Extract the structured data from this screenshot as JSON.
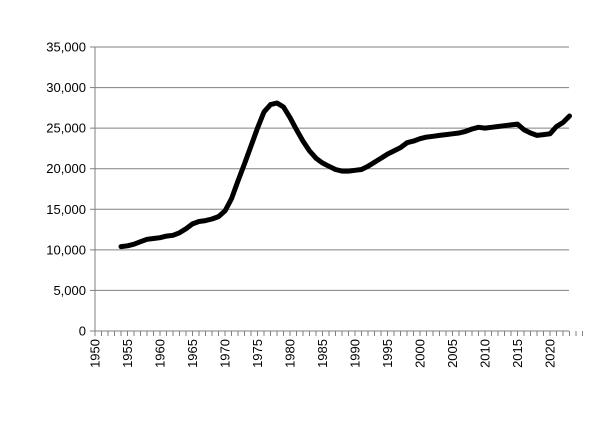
{
  "chart_data": {
    "type": "line",
    "title": "",
    "xlabel": "",
    "ylabel": "",
    "xlim": [
      1950,
      2025
    ],
    "ylim": [
      0,
      35000
    ],
    "y_ticks": [
      0,
      5000,
      10000,
      15000,
      20000,
      25000,
      30000,
      35000
    ],
    "y_tick_labels": [
      "0",
      "5,000",
      "10,000",
      "15,000",
      "20,000",
      "25,000",
      "30,000",
      "35,000"
    ],
    "x_ticks": [
      1950,
      1955,
      1960,
      1965,
      1970,
      1975,
      1980,
      1985,
      1990,
      1995,
      2000,
      2005,
      2010,
      2015,
      2020
    ],
    "x_tick_labels": [
      "1950",
      "1955",
      "1960",
      "1965",
      "1970",
      "1975",
      "1980",
      "1985",
      "1990",
      "1995",
      "2000",
      "2005",
      "2010",
      "2015",
      "2020"
    ],
    "grid": "horizontal",
    "line_color": "#000000",
    "grid_color": "#808080",
    "series": [
      {
        "x": [
          1954,
          1955,
          1956,
          1957,
          1958,
          1959,
          1960,
          1961,
          1962,
          1963,
          1964,
          1965,
          1966,
          1967,
          1968,
          1969,
          1970,
          1971,
          1972,
          1973,
          1974,
          1975,
          1976,
          1977,
          1978,
          1979,
          1980,
          1981,
          1982,
          1983,
          1984,
          1985,
          1986,
          1987,
          1988,
          1989,
          1990,
          1991,
          1992,
          1993,
          1994,
          1995,
          1996,
          1997,
          1998,
          1999,
          2000,
          2001,
          2002,
          2003,
          2004,
          2005,
          2006,
          2007,
          2008,
          2009,
          2010,
          2011,
          2012,
          2013,
          2014,
          2015,
          2016,
          2017,
          2018,
          2019,
          2020,
          2021,
          2022,
          2023
        ],
        "values": [
          10400,
          10500,
          10700,
          11000,
          11300,
          11400,
          11500,
          11700,
          11800,
          12100,
          12600,
          13200,
          13500,
          13600,
          13800,
          14100,
          14800,
          16300,
          18500,
          20600,
          22800,
          25000,
          27000,
          27900,
          28100,
          27600,
          26300,
          24800,
          23400,
          22200,
          21300,
          20700,
          20300,
          19900,
          19700,
          19700,
          19800,
          19900,
          20300,
          20800,
          21300,
          21800,
          22200,
          22600,
          23200,
          23400,
          23700,
          23900,
          24000,
          24100,
          24200,
          24300,
          24400,
          24600,
          24900,
          25100,
          25000,
          25100,
          25200,
          25300,
          25400,
          25500,
          24800,
          24400,
          24100,
          24200,
          24300,
          25200,
          25700,
          26500
        ]
      }
    ]
  }
}
